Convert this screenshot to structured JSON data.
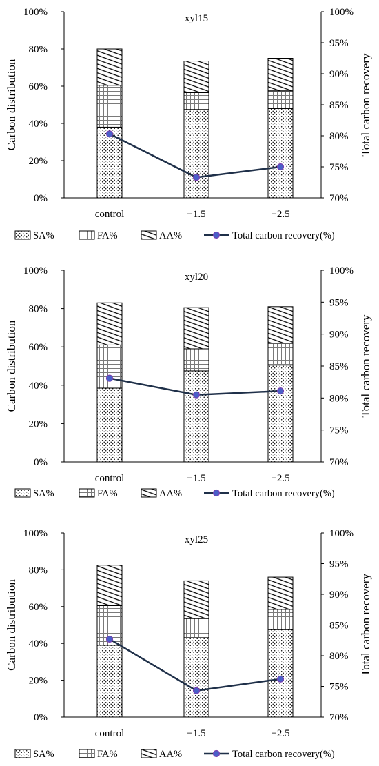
{
  "chart_data": [
    {
      "type": "bar",
      "title": "xyl15",
      "categories": [
        "control",
        "−1.5",
        "−2.5"
      ],
      "stacked": true,
      "series": [
        {
          "name": "SA%",
          "values": [
            38,
            47.5,
            48
          ]
        },
        {
          "name": "FA%",
          "values": [
            22.5,
            9,
            9.5
          ]
        },
        {
          "name": "AA%",
          "values": [
            19.5,
            17,
            17.5
          ]
        }
      ],
      "line_series": {
        "name": "Total carbon recovery(%)",
        "axis": "right",
        "values": [
          80.3,
          73.3,
          75
        ]
      },
      "ylabel": "Carbon distribution",
      "y2label": "Total carbon recovery",
      "ylim": [
        0,
        100
      ],
      "y2lim": [
        70,
        100
      ],
      "yticks": [
        "0%",
        "20%",
        "40%",
        "60%",
        "80%",
        "100%"
      ],
      "y2ticks": [
        "70%",
        "75%",
        "80%",
        "85%",
        "90%",
        "95%",
        "100%"
      ],
      "legend": [
        "SA%",
        "FA%",
        "AA%",
        "Total carbon recovery(%)"
      ],
      "legend_position": "bottom"
    },
    {
      "type": "bar",
      "title": "xyl20",
      "categories": [
        "control",
        "−1.5",
        "−2.5"
      ],
      "stacked": true,
      "series": [
        {
          "name": "SA%",
          "values": [
            38.5,
            47.5,
            50.5
          ]
        },
        {
          "name": "FA%",
          "values": [
            22.5,
            11.5,
            11.5
          ]
        },
        {
          "name": "AA%",
          "values": [
            22,
            21.5,
            19
          ]
        }
      ],
      "line_series": {
        "name": "Total carbon recovery(%)",
        "axis": "right",
        "values": [
          83.1,
          80.5,
          81.1
        ]
      },
      "ylabel": "Carbon distribution",
      "y2label": "Total carbon recovery",
      "ylim": [
        0,
        100
      ],
      "y2lim": [
        70,
        100
      ],
      "yticks": [
        "0%",
        "20%",
        "40%",
        "60%",
        "80%",
        "100%"
      ],
      "y2ticks": [
        "70%",
        "75%",
        "80%",
        "85%",
        "90%",
        "95%",
        "100%"
      ],
      "legend": [
        "SA%",
        "FA%",
        "AA%",
        "Total carbon recovery(%)"
      ],
      "legend_position": "bottom"
    },
    {
      "type": "bar",
      "title": "xyl25",
      "categories": [
        "control",
        "−1.5",
        "−2.5"
      ],
      "stacked": true,
      "series": [
        {
          "name": "SA%",
          "values": [
            39,
            43,
            47.5
          ]
        },
        {
          "name": "FA%",
          "values": [
            21.5,
            10.5,
            11
          ]
        },
        {
          "name": "AA%",
          "values": [
            22,
            20.5,
            17.5
          ]
        }
      ],
      "line_series": {
        "name": "Total carbon recovery(%)",
        "axis": "right",
        "values": [
          82.7,
          74.3,
          76.2
        ]
      },
      "ylabel": "Carbon distribution",
      "y2label": "Total carbon recovery",
      "ylim": [
        0,
        100
      ],
      "y2lim": [
        70,
        100
      ],
      "yticks": [
        "0%",
        "20%",
        "40%",
        "60%",
        "80%",
        "100%"
      ],
      "y2ticks": [
        "70%",
        "75%",
        "80%",
        "85%",
        "90%",
        "95%",
        "100%"
      ],
      "legend": [
        "SA%",
        "FA%",
        "AA%",
        "Total carbon recovery(%)"
      ],
      "legend_position": "bottom"
    }
  ],
  "colors": {
    "line": "#1f3049",
    "marker_fill": "#4a5fc8",
    "marker_edge": "#7a3fb0",
    "bar_edge": "#000000"
  }
}
